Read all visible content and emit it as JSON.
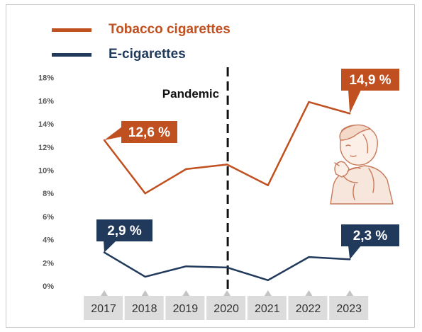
{
  "chart_data": {
    "type": "line",
    "x": [
      "2017",
      "2018",
      "2019",
      "2020",
      "2021",
      "2022",
      "2023"
    ],
    "yticks": [
      "0%",
      "2%",
      "4%",
      "6%",
      "8%",
      "10%",
      "12%",
      "14%",
      "16%",
      "18%"
    ],
    "ylim": [
      0,
      18
    ],
    "series": [
      {
        "name": "Tobacco cigarettes",
        "color": "#c0501f",
        "values": [
          12.6,
          8.0,
          10.1,
          10.5,
          8.7,
          15.9,
          14.9
        ]
      },
      {
        "name": "E-cigarettes",
        "color": "#213a5c",
        "values": [
          2.9,
          0.8,
          1.7,
          1.6,
          0.5,
          2.5,
          2.3
        ]
      }
    ],
    "annotations": {
      "event_label": "Pandemic",
      "event_x": "2020",
      "callouts": [
        "12,6 %",
        "14,9 %",
        "2,9 %",
        "2,3 %"
      ]
    },
    "legend": "top-left",
    "grid": false
  },
  "illustration": {
    "icon": "person-smoking-icon"
  }
}
